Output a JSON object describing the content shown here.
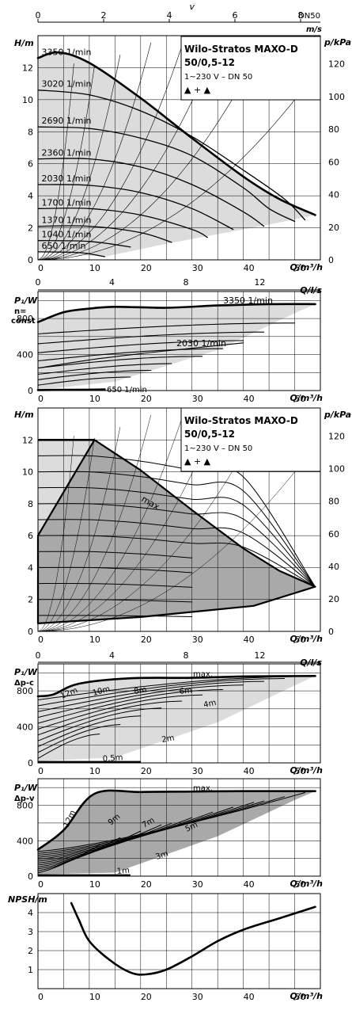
{
  "top_axis": {
    "label": "v",
    "unit": "m/s",
    "dn": "DN50",
    "ticks": [
      0,
      2,
      4,
      6,
      8
    ]
  },
  "legend": {
    "title_line1": "Wilo-Stratos MAXO-D",
    "title_line2": "50/0,5-12",
    "supply": "1~230 V – DN 50",
    "twin_symbol": "▲ + ▲"
  },
  "chart_data": [
    {
      "type": "line",
      "name": "h-curves-constant-speed",
      "ylabel": "H/m",
      "ylabel2": "p/kPa",
      "xlabel": "Q/m³/h",
      "xlim": [
        0,
        55
      ],
      "ylim": [
        0,
        14
      ],
      "x_ticks": [
        0,
        10,
        20,
        30,
        40,
        50
      ],
      "y_ticks": [
        0,
        2,
        4,
        6,
        8,
        10,
        12
      ],
      "y2_ticks": [
        0,
        20,
        40,
        60,
        80,
        100,
        120
      ],
      "series": [
        {
          "name": "3350 1/min",
          "points": [
            [
              0,
              12.6
            ],
            [
              4,
              12.95
            ],
            [
              10,
              12.3
            ],
            [
              20,
              10.1
            ],
            [
              30,
              7.6
            ],
            [
              40,
              5.2
            ],
            [
              47,
              3.8
            ],
            [
              54,
              2.8
            ]
          ]
        },
        {
          "name": "3020 1/min",
          "points": [
            [
              0,
              10.6
            ],
            [
              10,
              10.3
            ],
            [
              20,
              9.3
            ],
            [
              30,
              7.7
            ],
            [
              40,
              5.6
            ],
            [
              48,
              3.8
            ],
            [
              52,
              2.5
            ]
          ]
        },
        {
          "name": "2690 1/min",
          "points": [
            [
              0,
              8.3
            ],
            [
              10,
              8.2
            ],
            [
              20,
              7.6
            ],
            [
              30,
              6.5
            ],
            [
              40,
              4.5
            ],
            [
              45,
              3.2
            ],
            [
              50,
              2.4
            ]
          ]
        },
        {
          "name": "2360 1/min",
          "points": [
            [
              0,
              6.3
            ],
            [
              10,
              6.3
            ],
            [
              20,
              5.8
            ],
            [
              30,
              4.7
            ],
            [
              40,
              3.0
            ],
            [
              44,
              2.1
            ]
          ]
        },
        {
          "name": "2030 1/min",
          "points": [
            [
              0,
              4.7
            ],
            [
              10,
              4.65
            ],
            [
              20,
              4.2
            ],
            [
              30,
              3.2
            ],
            [
              38,
              1.9
            ]
          ]
        },
        {
          "name": "1700 1/min",
          "points": [
            [
              0,
              3.2
            ],
            [
              10,
              3.2
            ],
            [
              20,
              2.8
            ],
            [
              30,
              1.9
            ],
            [
              33,
              1.4
            ]
          ]
        },
        {
          "name": "1370 1/min",
          "points": [
            [
              0,
              2.1
            ],
            [
              10,
              2.1
            ],
            [
              20,
              1.7
            ],
            [
              26,
              1.1
            ]
          ]
        },
        {
          "name": "1040 1/min",
          "points": [
            [
              0,
              1.2
            ],
            [
              10,
              1.15
            ],
            [
              18,
              0.8
            ]
          ]
        },
        {
          "name": "650 1/min",
          "points": [
            [
              0,
              0.5
            ],
            [
              8,
              0.45
            ],
            [
              13,
              0.2
            ]
          ]
        }
      ]
    },
    {
      "type": "line",
      "name": "p1-constant-speed",
      "ylabel": "P₁/W",
      "ylabel_sub1": "n=",
      "ylabel_sub2": "const",
      "xlabel": "Q/m³/h",
      "x2label": "Q/l/s",
      "xlim": [
        0,
        55
      ],
      "ylim": [
        0,
        1100
      ],
      "x_ticks": [
        0,
        10,
        20,
        30,
        40,
        50
      ],
      "x2_ticks": [
        0,
        4,
        8,
        12
      ],
      "y_ticks": [
        0,
        400,
        800
      ],
      "series": [
        {
          "name": "3350 1/min",
          "points": [
            [
              0,
              760
            ],
            [
              5,
              870
            ],
            [
              10,
              910
            ],
            [
              15,
              930
            ],
            [
              25,
              920
            ],
            [
              35,
              945
            ],
            [
              45,
              960
            ],
            [
              54,
              960
            ]
          ]
        },
        {
          "name": "2030 1/min",
          "points": [
            [
              0,
              250
            ],
            [
              10,
              340
            ],
            [
              20,
              410
            ],
            [
              30,
              470
            ],
            [
              40,
              530
            ]
          ]
        },
        {
          "name": "650 1/min",
          "points": [
            [
              0,
              5
            ],
            [
              5,
              8
            ],
            [
              10,
              10
            ],
            [
              13,
              12
            ]
          ]
        }
      ]
    },
    {
      "type": "area",
      "name": "h-curves-delta-p-c",
      "ylabel": "H/m",
      "ylabel2": "p/kPa",
      "xlabel": "Q/m³/h",
      "annotation": "max",
      "xlim": [
        0,
        55
      ],
      "ylim": [
        0,
        14
      ],
      "x_ticks": [
        0,
        10,
        20,
        30,
        40,
        50
      ],
      "y_ticks": [
        0,
        2,
        4,
        6,
        8,
        10,
        12
      ],
      "y2_ticks": [
        0,
        20,
        40,
        60,
        80,
        100,
        120
      ],
      "envelope": [
        [
          0,
          0.5
        ],
        [
          0,
          6
        ],
        [
          11,
          12
        ],
        [
          20,
          10.1
        ],
        [
          30,
          7.6
        ],
        [
          40,
          5.2
        ],
        [
          47,
          3.8
        ],
        [
          54,
          2.8
        ],
        [
          42,
          1.6
        ],
        [
          20,
          0.9
        ],
        [
          0,
          0.5
        ]
      ]
    },
    {
      "type": "line",
      "name": "p1-delta-p-c",
      "ylabel": "P₁/W",
      "ylabel_sub1": "Δp-c",
      "xlabel": "Q/m³/h",
      "x2label": "Q/l/s",
      "annotation": "max.",
      "xlim": [
        0,
        55
      ],
      "ylim": [
        0,
        1100
      ],
      "x_ticks": [
        0,
        10,
        20,
        30,
        40,
        50
      ],
      "x2_ticks": [
        0,
        4,
        8,
        12
      ],
      "y_ticks": [
        0,
        400,
        800
      ],
      "curve_labels": [
        "12m",
        "10m",
        "8m",
        "6m",
        "4m",
        "2m",
        "0,5m"
      ],
      "series": [
        {
          "name": "max.",
          "points": [
            [
              0,
              740
            ],
            [
              3,
              760
            ],
            [
              8,
              880
            ],
            [
              18,
              940
            ],
            [
              30,
              945
            ],
            [
              40,
              960
            ],
            [
              54,
              965
            ]
          ]
        }
      ]
    },
    {
      "type": "line",
      "name": "p1-delta-p-v",
      "ylabel": "P₁/W",
      "ylabel_sub1": "Δp-v",
      "xlabel": "Q/m³/h",
      "annotation": "max.",
      "xlim": [
        0,
        55
      ],
      "ylim": [
        0,
        1100
      ],
      "x_ticks": [
        0,
        10,
        20,
        30,
        40,
        50
      ],
      "y_ticks": [
        0,
        400,
        800
      ],
      "curve_labels": [
        "12m",
        "9m",
        "7m",
        "5m",
        "3m",
        "1m"
      ],
      "series": [
        {
          "name": "max.",
          "points": [
            [
              0,
              300
            ],
            [
              5,
              520
            ],
            [
              11,
              930
            ],
            [
              20,
              950
            ],
            [
              30,
              955
            ],
            [
              40,
              960
            ],
            [
              54,
              960
            ]
          ]
        }
      ]
    },
    {
      "type": "line",
      "name": "npsh",
      "ylabel": "NPSH/m",
      "xlabel": "Q/m³/h",
      "xlim": [
        0,
        55
      ],
      "ylim": [
        0,
        5
      ],
      "x_ticks": [
        0,
        10,
        20,
        30,
        40,
        50
      ],
      "y_ticks": [
        1,
        2,
        3,
        4
      ],
      "series": [
        {
          "name": "NPSH",
          "points": [
            [
              6.5,
              4.5
            ],
            [
              8,
              3.6
            ],
            [
              10,
              2.5
            ],
            [
              14,
              1.5
            ],
            [
              18,
              0.85
            ],
            [
              21,
              0.75
            ],
            [
              25,
              1.0
            ],
            [
              30,
              1.7
            ],
            [
              35,
              2.5
            ],
            [
              40,
              3.1
            ],
            [
              47,
              3.7
            ],
            [
              54,
              4.3
            ]
          ]
        }
      ]
    }
  ]
}
